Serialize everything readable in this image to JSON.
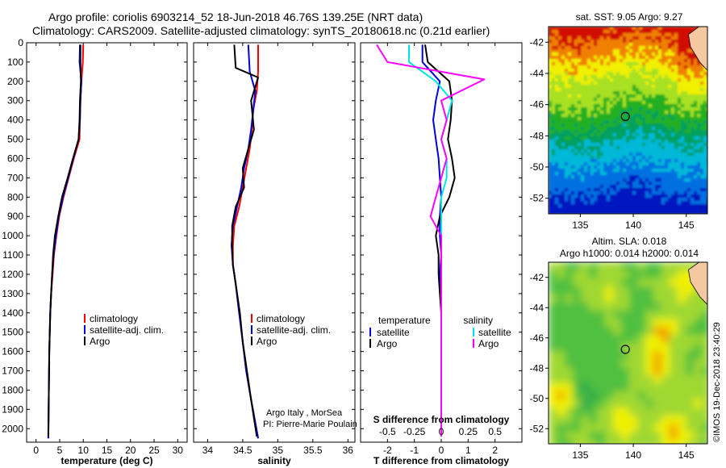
{
  "header": {
    "title_line1": "Argo profile: coriolis 6903214_52 18-Jun-2018 46.76S 139.25E (NRT data)",
    "title_line2": "Climatology: CARS2009. Satellite-adjusted climatology: synTS_20180618.nc (0.21d earlier)"
  },
  "credits": {
    "line1": "Argo Italy , MorSea",
    "line2": "PI: Pierre-Marie Poulain",
    "imos": "©IMOS 19-Dec-2018 23:40:29"
  },
  "colors": {
    "climatology": "#ff0000",
    "satellite": "#0000e0",
    "argo": "#000000",
    "salinity_satellite": "#00e5e5",
    "salinity_argo": "#ff00ff"
  },
  "chart_data": [
    {
      "type": "line",
      "id": "temperature",
      "xlabel": "temperature (deg C)",
      "ylabel": "",
      "xlim": [
        -2,
        32
      ],
      "ylim": [
        2070,
        0
      ],
      "xticks": [
        0,
        5,
        10,
        15,
        20,
        25,
        30
      ],
      "xtick_labels": [
        "0",
        "5",
        "10",
        "15",
        "20",
        "25",
        "30"
      ],
      "yticks": [
        0,
        100,
        200,
        300,
        400,
        500,
        600,
        700,
        800,
        900,
        1000,
        1100,
        1200,
        1300,
        1400,
        1500,
        1600,
        1700,
        1800,
        1900,
        2000
      ],
      "ytick_labels": [
        "0",
        "100",
        "200",
        "300",
        "400",
        "500",
        "600",
        "700",
        "800",
        "900",
        "1000",
        "1100",
        "1200",
        "1300",
        "1400",
        "1500",
        "1600",
        "1700",
        "1800",
        "1900",
        "2000"
      ],
      "legend": {
        "placement": "bottom-right",
        "entries": [
          "climatology",
          "satellite-adj. clim.",
          "Argo"
        ]
      },
      "series": [
        {
          "name": "climatology",
          "color": "#ff0000",
          "x": [
            10.0,
            9.9,
            9.6,
            9.4,
            9.3,
            9.2,
            8.0,
            6.9,
            5.8,
            4.9,
            4.3,
            3.8,
            3.5,
            3.2,
            3.0,
            2.8,
            2.6
          ],
          "y": [
            10,
            100,
            200,
            300,
            400,
            500,
            600,
            700,
            800,
            900,
            1000,
            1100,
            1200,
            1300,
            1400,
            1600,
            2050
          ]
        },
        {
          "name": "satellite-adj. clim.",
          "color": "#0000e0",
          "x": [
            9.3,
            9.2,
            9.6,
            9.4,
            9.3,
            9.0,
            7.9,
            6.8,
            5.7,
            4.8,
            4.2,
            3.7,
            3.4,
            3.2,
            3.0,
            2.8,
            2.6
          ],
          "y": [
            10,
            100,
            200,
            300,
            400,
            500,
            600,
            700,
            800,
            900,
            1000,
            1100,
            1200,
            1300,
            1400,
            1600,
            2050
          ]
        },
        {
          "name": "Argo",
          "color": "#000000",
          "x": [
            9.4,
            9.4,
            9.5,
            9.3,
            9.2,
            9.0,
            7.8,
            6.7,
            5.5,
            4.7,
            4.0,
            3.6,
            3.4,
            3.2,
            3.0,
            2.8,
            2.6
          ],
          "y": [
            10,
            100,
            200,
            300,
            400,
            500,
            600,
            700,
            800,
            900,
            1000,
            1100,
            1200,
            1300,
            1400,
            1600,
            2040
          ]
        }
      ]
    },
    {
      "type": "line",
      "id": "salinity",
      "xlabel": "salinity",
      "ylabel": "",
      "xlim": [
        33.8,
        36.1
      ],
      "ylim": [
        2070,
        0
      ],
      "xticks": [
        34,
        34.5,
        35,
        35.5,
        36
      ],
      "xtick_labels": [
        "34",
        "34.5",
        "35",
        "35.5",
        "36"
      ],
      "legend": {
        "placement": "bottom-right",
        "entries": [
          "climatology",
          "satellite-adj. clim.",
          "Argo"
        ]
      },
      "series": [
        {
          "name": "climatology",
          "color": "#ff0000",
          "x": [
            34.72,
            34.72,
            34.7,
            34.65,
            34.63,
            34.6,
            34.55,
            34.5,
            34.45,
            34.38,
            34.36,
            34.36,
            34.4,
            34.45,
            34.5,
            34.55,
            34.62,
            34.72
          ],
          "y": [
            10,
            150,
            250,
            350,
            450,
            550,
            650,
            750,
            850,
            950,
            1050,
            1150,
            1250,
            1400,
            1550,
            1700,
            1850,
            2050
          ]
        },
        {
          "name": "satellite-adj. clim.",
          "color": "#0000e0",
          "x": [
            34.58,
            34.6,
            34.68,
            34.65,
            34.62,
            34.58,
            34.52,
            34.48,
            34.42,
            34.36,
            34.34,
            34.36,
            34.4,
            34.45,
            34.5,
            34.55,
            34.62,
            34.72
          ],
          "y": [
            10,
            150,
            250,
            350,
            450,
            550,
            650,
            750,
            850,
            950,
            1050,
            1150,
            1250,
            1400,
            1550,
            1700,
            1850,
            2050
          ]
        },
        {
          "name": "Argo",
          "color": "#000000",
          "x": [
            34.38,
            34.4,
            34.72,
            34.62,
            34.66,
            34.58,
            34.5,
            34.52,
            34.4,
            34.35,
            34.35,
            34.36,
            34.4,
            34.46,
            34.5,
            34.56,
            34.62,
            34.7
          ],
          "y": [
            10,
            130,
            180,
            300,
            450,
            550,
            650,
            750,
            850,
            950,
            1050,
            1150,
            1250,
            1400,
            1550,
            1700,
            1850,
            2040
          ]
        }
      ]
    },
    {
      "type": "line",
      "id": "difference",
      "xlabel": "T difference from climatology",
      "xlabel_top": "S difference from climatology",
      "ylabel": "",
      "xlim": [
        -3,
        3
      ],
      "ylim": [
        2070,
        0
      ],
      "xticks": [
        -2,
        -1,
        0,
        1,
        2
      ],
      "xtick_labels": [
        "-2",
        "-1",
        "0",
        "1",
        "2"
      ],
      "s_ticks": [
        -0.5,
        -0.25,
        0,
        0.25,
        0.5
      ],
      "s_tick_labels": [
        "-0.5",
        "-0.25",
        "0",
        "0.25",
        "0.5"
      ],
      "legend": {
        "temperature_title": "temperature",
        "salinity_title": "salinity",
        "temperature_entries": [
          "satellite",
          "Argo"
        ],
        "salinity_entries": [
          "satellite",
          "Argo"
        ],
        "placement": "bottom"
      },
      "series": [
        {
          "name": "satellite",
          "group": "temperature",
          "color": "#0000e0",
          "x": [
            -0.7,
            -0.7,
            -0.05,
            -0.2,
            -0.3,
            -0.2,
            -0.1,
            -0.05,
            0.0,
            -0.05,
            -0.05,
            0.0,
            -0.05,
            0.0,
            0.0,
            0.0,
            0.0
          ],
          "y": [
            10,
            100,
            200,
            300,
            400,
            500,
            600,
            700,
            800,
            900,
            1000,
            1100,
            1200,
            1300,
            1400,
            1600,
            2040
          ]
        },
        {
          "name": "Argo",
          "group": "temperature",
          "color": "#000000",
          "x": [
            -0.6,
            -0.5,
            0.3,
            0.4,
            0.35,
            0.25,
            0.4,
            0.5,
            0.3,
            -0.05,
            -0.2,
            -0.1,
            -0.1,
            -0.05,
            0.0,
            0.0,
            0.0
          ],
          "y": [
            10,
            100,
            200,
            300,
            400,
            500,
            600,
            700,
            800,
            900,
            1000,
            1100,
            1200,
            1300,
            1400,
            1600,
            2040
          ]
        },
        {
          "name": "satellite",
          "group": "salinity",
          "color": "#00e5e5",
          "x": [
            -0.3,
            -0.3,
            -0.05,
            0.1,
            0.05,
            0.0,
            0.05,
            0.05,
            0.0,
            0.0,
            0.0,
            0.0,
            0.0,
            0.0,
            0.0,
            0.0,
            0.0
          ],
          "y": [
            10,
            100,
            200,
            300,
            400,
            500,
            600,
            700,
            800,
            900,
            1000,
            1100,
            1200,
            1300,
            1400,
            1600,
            2040
          ]
        },
        {
          "name": "Argo",
          "group": "salinity",
          "color": "#ff00ff",
          "x": [
            -0.6,
            -0.5,
            0.4,
            0.0,
            0.05,
            0.0,
            0.05,
            0.0,
            -0.05,
            -0.1,
            0.0,
            0.0,
            0.0,
            0.0,
            0.0,
            0.0,
            0.0
          ],
          "y": [
            10,
            100,
            190,
            300,
            400,
            500,
            600,
            700,
            800,
            900,
            1000,
            1100,
            1200,
            1300,
            1400,
            1600,
            2040
          ]
        }
      ]
    },
    {
      "type": "heatmap",
      "id": "sst-map",
      "title": "sat. SST: 9.05 Argo: 9.27",
      "xlim": [
        132,
        147
      ],
      "ylim": [
        -53,
        -41
      ],
      "xticks": [
        135,
        140,
        145
      ],
      "xtick_labels": [
        "135",
        "140",
        "145"
      ],
      "yticks": [
        -42,
        -44,
        -46,
        -48,
        -50,
        -52
      ],
      "ytick_labels": [
        "-42",
        "-44",
        "-46",
        "-48",
        "-50",
        "-52"
      ],
      "marker": {
        "lon": 139.25,
        "lat": -46.76
      }
    },
    {
      "type": "heatmap",
      "id": "sla-map",
      "title": "Altim. SLA: 0.018",
      "subtitle": "Argo h1000: 0.014 h2000: 0.014",
      "xlim": [
        132,
        147
      ],
      "ylim": [
        -53,
        -41
      ],
      "xticks": [
        135,
        140,
        145
      ],
      "xtick_labels": [
        "135",
        "140",
        "145"
      ],
      "yticks": [
        -42,
        -44,
        -46,
        -48,
        -50,
        -52
      ],
      "ytick_labels": [
        "-42",
        "-44",
        "-46",
        "-48",
        "-50",
        "-52"
      ],
      "marker": {
        "lon": 139.25,
        "lat": -46.76
      }
    }
  ]
}
